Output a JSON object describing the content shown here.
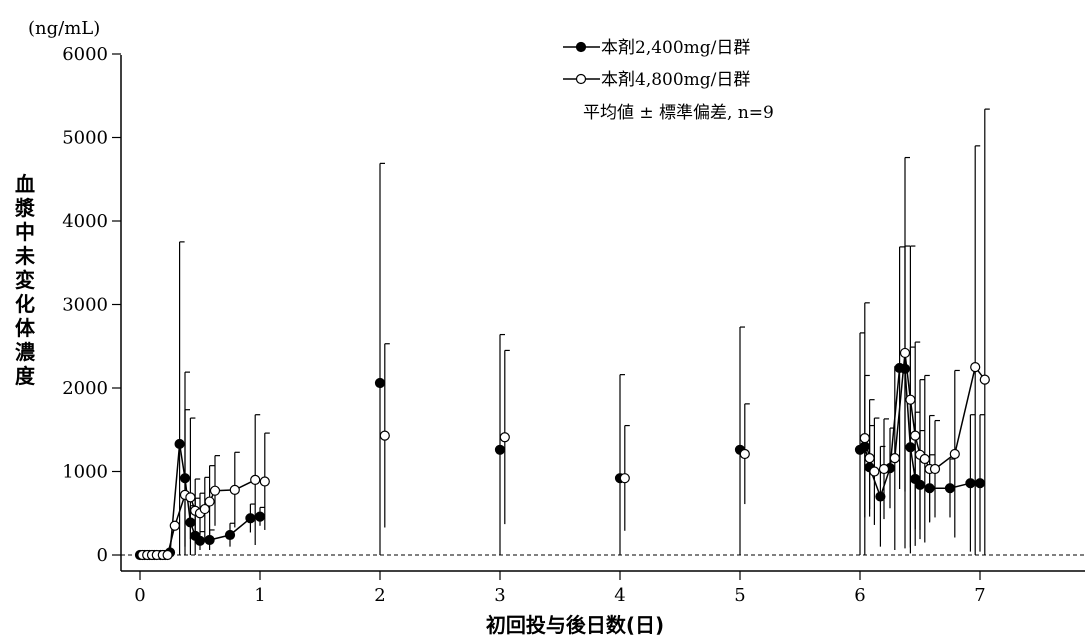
{
  "chart_data": {
    "type": "line",
    "unit_label": "(ng/mL)",
    "ylabel": "血漿中未変化体濃度",
    "xlabel": "初回投与後日数(日)",
    "ylim": [
      0,
      6000
    ],
    "xlim": [
      0,
      7.8
    ],
    "y_ticks": [
      {
        "value": 0,
        "label": "0"
      },
      {
        "value": 1000,
        "label": "1000"
      },
      {
        "value": 2000,
        "label": "2000"
      },
      {
        "value": 3000,
        "label": "3000"
      },
      {
        "value": 4000,
        "label": "4000"
      },
      {
        "value": 5000,
        "label": "5000"
      },
      {
        "value": 6000,
        "label": "6000"
      }
    ],
    "x_ticks": [
      {
        "value": 0,
        "label": "0"
      },
      {
        "value": 1,
        "label": "1"
      },
      {
        "value": 2,
        "label": "2"
      },
      {
        "value": 3,
        "label": "3"
      },
      {
        "value": 4,
        "label": "4"
      },
      {
        "value": 5,
        "label": "5"
      },
      {
        "value": 6,
        "label": "6"
      },
      {
        "value": 7,
        "label": "7"
      }
    ],
    "reference_line": {
      "y": 0,
      "style": "dashed"
    },
    "legend_note": "平均値 ± 標準偏差, n=9",
    "series": [
      {
        "name": "本剤2,400mg/日群",
        "marker": "filled",
        "segments": [
          {
            "points": [
              {
                "x": 0.0,
                "y": 0,
                "sd": 0
              },
              {
                "x": 0.04,
                "y": 0,
                "sd": 0
              },
              {
                "x": 0.08,
                "y": 0,
                "sd": 0
              },
              {
                "x": 0.12,
                "y": 0,
                "sd": 0
              },
              {
                "x": 0.17,
                "y": 0,
                "sd": 0
              },
              {
                "x": 0.21,
                "y": 0,
                "sd": 0
              },
              {
                "x": 0.25,
                "y": 30,
                "sd": 0
              },
              {
                "x": 0.33,
                "y": 1330,
                "sd": 2420
              },
              {
                "x": 0.375,
                "y": 920,
                "sd": 820
              },
              {
                "x": 0.42,
                "y": 390,
                "sd": 200
              },
              {
                "x": 0.46,
                "y": 230,
                "sd": 450
              },
              {
                "x": 0.5,
                "y": 170,
                "sd": 110
              },
              {
                "x": 0.58,
                "y": 180,
                "sd": 120
              },
              {
                "x": 0.75,
                "y": 240,
                "sd": 140
              },
              {
                "x": 0.92,
                "y": 440,
                "sd": 170
              },
              {
                "x": 1.0,
                "y": 460,
                "sd": 110
              }
            ]
          },
          {
            "points": [
              {
                "x": 2.0,
                "y": 2060,
                "sd": 2630
              }
            ]
          },
          {
            "points": [
              {
                "x": 3.0,
                "y": 1260,
                "sd": 1380
              }
            ]
          },
          {
            "points": [
              {
                "x": 4.0,
                "y": 920,
                "sd": 1240
              }
            ]
          },
          {
            "points": [
              {
                "x": 5.0,
                "y": 1260,
                "sd": 1470
              }
            ]
          },
          {
            "points": [
              {
                "x": 6.0,
                "y": 1260,
                "sd": 1400
              },
              {
                "x": 6.04,
                "y": 1300,
                "sd": 850
              },
              {
                "x": 6.08,
                "y": 1050,
                "sd": 500
              },
              {
                "x": 6.17,
                "y": 700,
                "sd": 600
              },
              {
                "x": 6.25,
                "y": 1040,
                "sd": 480
              },
              {
                "x": 6.33,
                "y": 2240,
                "sd": 1450
              },
              {
                "x": 6.375,
                "y": 2230,
                "sd": 1470
              },
              {
                "x": 6.42,
                "y": 1290,
                "sd": 1200
              },
              {
                "x": 6.46,
                "y": 910,
                "sd": 800
              },
              {
                "x": 6.5,
                "y": 840,
                "sd": 650
              },
              {
                "x": 6.58,
                "y": 800,
                "sd": 400
              },
              {
                "x": 6.75,
                "y": 800,
                "sd": 350
              },
              {
                "x": 6.92,
                "y": 860,
                "sd": 820
              },
              {
                "x": 7.0,
                "y": 860,
                "sd": 820
              }
            ]
          }
        ]
      },
      {
        "name": "本剤4,800mg/日群",
        "marker": "open",
        "segments": [
          {
            "points": [
              {
                "x": 0.02,
                "y": 0,
                "sd": 0
              },
              {
                "x": 0.06,
                "y": 0,
                "sd": 0
              },
              {
                "x": 0.1,
                "y": 0,
                "sd": 0
              },
              {
                "x": 0.14,
                "y": 0,
                "sd": 0
              },
              {
                "x": 0.19,
                "y": 0,
                "sd": 0
              },
              {
                "x": 0.23,
                "y": 0,
                "sd": 0
              },
              {
                "x": 0.29,
                "y": 350,
                "sd": 0
              },
              {
                "x": 0.375,
                "y": 720,
                "sd": 1470
              },
              {
                "x": 0.42,
                "y": 690,
                "sd": 950
              },
              {
                "x": 0.46,
                "y": 530,
                "sd": 380
              },
              {
                "x": 0.5,
                "y": 500,
                "sd": 240
              },
              {
                "x": 0.54,
                "y": 550,
                "sd": 380
              },
              {
                "x": 0.58,
                "y": 640,
                "sd": 430
              },
              {
                "x": 0.625,
                "y": 770,
                "sd": 420
              },
              {
                "x": 0.79,
                "y": 780,
                "sd": 450
              },
              {
                "x": 0.96,
                "y": 900,
                "sd": 780
              },
              {
                "x": 1.04,
                "y": 880,
                "sd": 580
              }
            ]
          },
          {
            "points": [
              {
                "x": 2.04,
                "y": 1430,
                "sd": 1100
              }
            ]
          },
          {
            "points": [
              {
                "x": 3.04,
                "y": 1410,
                "sd": 1040
              }
            ]
          },
          {
            "points": [
              {
                "x": 4.04,
                "y": 920,
                "sd": 630
              }
            ]
          },
          {
            "points": [
              {
                "x": 5.04,
                "y": 1210,
                "sd": 600
              }
            ]
          },
          {
            "points": [
              {
                "x": 6.04,
                "y": 1400,
                "sd": 1620
              },
              {
                "x": 6.08,
                "y": 1160,
                "sd": 700
              },
              {
                "x": 6.12,
                "y": 1000,
                "sd": 640
              },
              {
                "x": 6.2,
                "y": 1030,
                "sd": 600
              },
              {
                "x": 6.29,
                "y": 1160,
                "sd": 1100
              },
              {
                "x": 6.375,
                "y": 2420,
                "sd": 2340
              },
              {
                "x": 6.42,
                "y": 1860,
                "sd": 1840
              },
              {
                "x": 6.46,
                "y": 1430,
                "sd": 1120
              },
              {
                "x": 6.5,
                "y": 1200,
                "sd": 900
              },
              {
                "x": 6.54,
                "y": 1150,
                "sd": 1000
              },
              {
                "x": 6.58,
                "y": 1030,
                "sd": 640
              },
              {
                "x": 6.625,
                "y": 1030,
                "sd": 580
              },
              {
                "x": 6.79,
                "y": 1210,
                "sd": 1000
              },
              {
                "x": 6.96,
                "y": 2250,
                "sd": 2650
              },
              {
                "x": 7.04,
                "y": 2100,
                "sd": 3240
              }
            ]
          }
        ]
      }
    ]
  }
}
